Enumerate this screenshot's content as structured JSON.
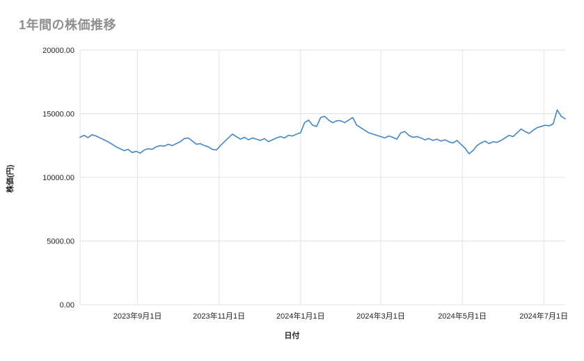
{
  "page": {
    "background": "#ffffff"
  },
  "colors": {
    "title": "#8f8f8f",
    "grid": "#e2e2e2",
    "axis_text": "#222222",
    "series_line": "#4285c4",
    "background": "#ffffff"
  },
  "chart_data": {
    "type": "line",
    "title": "1年間の株価推移",
    "xlabel": "日付",
    "ylabel": "株価(円)",
    "ylim": [
      0,
      20000
    ],
    "grid": true,
    "legend": "none",
    "y_ticks": {
      "values": [
        0,
        5000,
        10000,
        15000,
        20000
      ],
      "labels": [
        "0.00",
        "5000.00",
        "10000.00",
        "15000.00",
        "20000.00"
      ]
    },
    "x_ticks": [
      {
        "label": "2023年9月1日",
        "date": "2023-09-01"
      },
      {
        "label": "2023年11月1日",
        "date": "2023-11-01"
      },
      {
        "label": "2024年1月1日",
        "date": "2024-01-01"
      },
      {
        "label": "2024年3月1日",
        "date": "2024-03-01"
      },
      {
        "label": "2024年5月1日",
        "date": "2024-05-01"
      },
      {
        "label": "2024年7月1日",
        "date": "2024-07-01"
      }
    ],
    "series": [
      {
        "color": "#4285c4",
        "start_date": "2023-07-20",
        "interval_days": 3,
        "values": [
          13150,
          13300,
          13120,
          13350,
          13250,
          13100,
          12950,
          12800,
          12600,
          12400,
          12250,
          12100,
          12200,
          11950,
          12050,
          11900,
          12150,
          12250,
          12200,
          12400,
          12500,
          12450,
          12600,
          12500,
          12650,
          12800,
          13050,
          13100,
          12850,
          12600,
          12650,
          12500,
          12400,
          12200,
          12150,
          12500,
          12800,
          13100,
          13400,
          13200,
          13000,
          13150,
          12950,
          13100,
          13000,
          12900,
          13050,
          12800,
          12950,
          13100,
          13200,
          13100,
          13300,
          13250,
          13400,
          13500,
          14300,
          14500,
          14100,
          14000,
          14700,
          14800,
          14500,
          14300,
          14450,
          14450,
          14300,
          14500,
          14700,
          14100,
          13900,
          13700,
          13500,
          13400,
          13300,
          13200,
          13100,
          13250,
          13150,
          13000,
          13500,
          13600,
          13300,
          13150,
          13200,
          13100,
          12950,
          13050,
          12900,
          13000,
          12850,
          12950,
          12800,
          12700,
          12900,
          12600,
          12300,
          11850,
          12100,
          12500,
          12700,
          12850,
          12650,
          12800,
          12750,
          12900,
          13100,
          13300,
          13200,
          13500,
          13800,
          13600,
          13450,
          13700,
          13900,
          14000,
          14100,
          14050,
          14200,
          15300,
          14800,
          14600
        ]
      }
    ]
  }
}
